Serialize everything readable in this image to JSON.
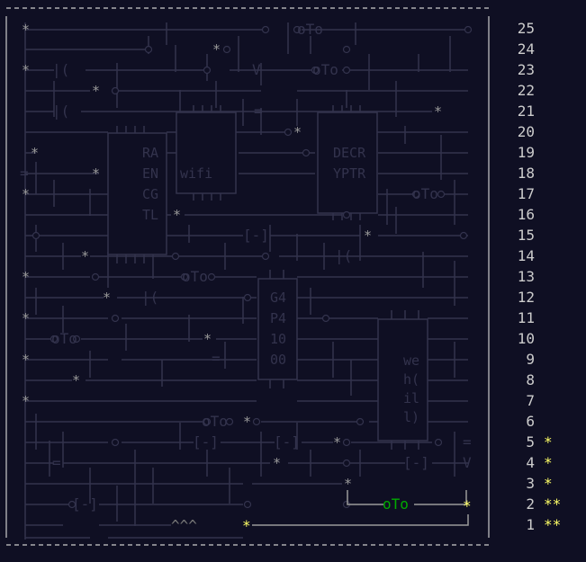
{
  "chips": [
    {
      "id": "chip-ra",
      "lines": [
        "RA",
        "EN",
        "CG",
        "TL"
      ]
    },
    {
      "id": "chip-wifi",
      "lines": [
        "wifi"
      ]
    },
    {
      "id": "chip-decr",
      "lines": [
        "DECR",
        "YPTR"
      ]
    },
    {
      "id": "chip-g4",
      "lines": [
        "G4",
        "P4",
        "10",
        "00"
      ]
    },
    {
      "id": "chip-we",
      "lines": [
        "we",
        "h(",
        "il",
        "l)"
      ]
    }
  ],
  "glyphs": {
    "star": "*",
    "gate": "oTo",
    "bracket": "[-]",
    "vee": "^^^",
    "bar": "|(",
    "eq": "=",
    "v": "V"
  },
  "days": [
    {
      "num": "25",
      "stars": ""
    },
    {
      "num": "24",
      "stars": ""
    },
    {
      "num": "23",
      "stars": ""
    },
    {
      "num": "22",
      "stars": ""
    },
    {
      "num": "21",
      "stars": ""
    },
    {
      "num": "20",
      "stars": ""
    },
    {
      "num": "19",
      "stars": ""
    },
    {
      "num": "18",
      "stars": ""
    },
    {
      "num": "17",
      "stars": ""
    },
    {
      "num": "16",
      "stars": ""
    },
    {
      "num": "15",
      "stars": ""
    },
    {
      "num": "14",
      "stars": ""
    },
    {
      "num": "13",
      "stars": ""
    },
    {
      "num": "12",
      "stars": ""
    },
    {
      "num": "11",
      "stars": ""
    },
    {
      "num": "10",
      "stars": ""
    },
    {
      "num": "9",
      "stars": ""
    },
    {
      "num": "8",
      "stars": ""
    },
    {
      "num": "7",
      "stars": ""
    },
    {
      "num": "6",
      "stars": ""
    },
    {
      "num": "5",
      "stars": "*"
    },
    {
      "num": "4",
      "stars": "*"
    },
    {
      "num": "3",
      "stars": "*"
    },
    {
      "num": "2",
      "stars": "**"
    },
    {
      "num": "1",
      "stars": "**"
    }
  ],
  "colors": {
    "background": "#0f0f23",
    "dim": "#33334d",
    "lit": "#9a9a9a",
    "gold": "#ffff66",
    "green": "#00aa00",
    "text": "#cccccc"
  }
}
